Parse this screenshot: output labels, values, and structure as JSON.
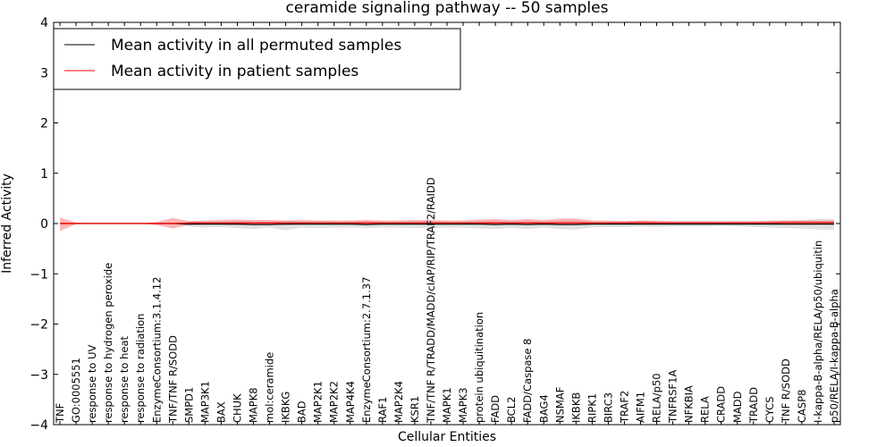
{
  "chart_data": {
    "type": "line",
    "title": "ceramide signaling pathway -- 50 samples",
    "xlabel": "Cellular Entities",
    "ylabel": "Inferred Activity",
    "ylim": [
      -4,
      4
    ],
    "yticks": [
      "4",
      "3",
      "2",
      "1",
      "0",
      "−1",
      "−2",
      "−3",
      "−4"
    ],
    "grid": false,
    "legend_position": "top-left",
    "categories": [
      "TNF",
      "GO:0005551",
      "response to UV",
      "response to hydrogen peroxide",
      "response to heat",
      "response to radiation",
      "EnzymeConsortium:3.1.4.12",
      "TNF/TNF R/SODD",
      "SMPD1",
      "MAP3K1",
      "BAX",
      "CHUK",
      "MAPK8",
      "mol:ceramide",
      "IKBKG",
      "BAD",
      "MAP2K1",
      "MAP2K2",
      "MAP4K4",
      "EnzymeConsortium:2.7.1.37",
      "RAF1",
      "MAP2K4",
      "KSR1",
      "TNF/TNF R/TRADD/MADD/cIAP/RIP/TRAF2/RAIDD",
      "MAPK1",
      "MAPK3",
      "protein ubiquitination",
      "FADD",
      "BCL2",
      "FADD/Caspase 8",
      "BAG4",
      "NSMAF",
      "IKBKB",
      "RIPK1",
      "BIRC3",
      "TRAF2",
      "AIFM1",
      "RELA/p50",
      "TNFRSF1A",
      "NFKBIA",
      "RELA",
      "CRADD",
      "MADD",
      "TRADD",
      "CYCS",
      "TNF R/SODD",
      "CASP8",
      "I-kappa-B-alpha/RELA/p50/ubiquitin",
      "p50/RELA/I-kappa-B-alpha"
    ],
    "series": [
      {
        "name": "Mean activity in all permuted samples",
        "color": "#000000",
        "values": [
          0,
          0,
          0,
          0,
          0,
          0,
          0,
          0,
          -0.01,
          -0.01,
          -0.01,
          -0.01,
          -0.02,
          -0.02,
          -0.01,
          -0.01,
          -0.01,
          -0.01,
          -0.01,
          -0.02,
          -0.01,
          -0.01,
          -0.01,
          -0.01,
          -0.01,
          -0.01,
          -0.01,
          -0.02,
          -0.01,
          -0.02,
          -0.01,
          -0.02,
          -0.02,
          -0.01,
          -0.01,
          -0.01,
          -0.01,
          -0.01,
          -0.01,
          -0.01,
          -0.01,
          -0.01,
          -0.01,
          -0.01,
          -0.01,
          -0.01,
          -0.01,
          -0.01,
          -0.01
        ],
        "lower": [
          0,
          0,
          0,
          0,
          0,
          0,
          0,
          0,
          -0.06,
          -0.08,
          -0.07,
          -0.09,
          -0.11,
          -0.08,
          -0.14,
          -0.08,
          -0.09,
          -0.08,
          -0.08,
          -0.09,
          -0.08,
          -0.08,
          -0.09,
          -0.09,
          -0.08,
          -0.08,
          -0.1,
          -0.11,
          -0.09,
          -0.11,
          -0.08,
          -0.11,
          -0.12,
          -0.08,
          -0.07,
          -0.07,
          -0.06,
          -0.07,
          -0.06,
          -0.06,
          -0.06,
          -0.05,
          -0.06,
          -0.07,
          -0.08,
          -0.09,
          -0.1,
          -0.12,
          -0.12
        ],
        "upper": [
          0,
          0,
          0,
          0,
          0,
          0,
          0,
          0,
          0.03,
          0.04,
          0.04,
          0.05,
          0.05,
          0.04,
          0.06,
          0.04,
          0.05,
          0.04,
          0.04,
          0.05,
          0.04,
          0.04,
          0.05,
          0.05,
          0.04,
          0.04,
          0.05,
          0.06,
          0.05,
          0.06,
          0.04,
          0.06,
          0.06,
          0.04,
          0.04,
          0.04,
          0.04,
          0.04,
          0.03,
          0.04,
          0.04,
          0.03,
          0.04,
          0.04,
          0.05,
          0.06,
          0.07,
          0.09,
          0.09
        ],
        "band_color": "#c8c8c8"
      },
      {
        "name": "Mean activity in patient samples",
        "color": "#ff0000",
        "values": [
          0,
          0,
          0,
          0,
          0,
          0,
          0,
          0,
          0.01,
          0.01,
          0.01,
          0.01,
          0.01,
          0.01,
          0.01,
          0.01,
          0.01,
          0.01,
          0.01,
          0.01,
          0.01,
          0.01,
          0.01,
          0.01,
          0.01,
          0.01,
          0.01,
          0.01,
          0.01,
          0.01,
          0.01,
          0.01,
          0.01,
          0.01,
          0.01,
          0.01,
          0.02,
          0.01,
          0.01,
          0.01,
          0.01,
          0.01,
          0.01,
          0.01,
          0.01,
          0.02,
          0.02,
          0.02,
          0.02
        ],
        "lower": [
          -0.15,
          -0.01,
          0,
          0,
          0,
          0,
          -0.03,
          -0.1,
          -0.03,
          -0.02,
          -0.02,
          -0.03,
          -0.03,
          -0.02,
          -0.03,
          -0.02,
          -0.02,
          -0.02,
          -0.02,
          -0.02,
          -0.02,
          -0.02,
          -0.02,
          -0.02,
          -0.02,
          -0.02,
          -0.02,
          -0.02,
          -0.02,
          -0.02,
          -0.02,
          -0.02,
          -0.02,
          -0.02,
          -0.02,
          -0.01,
          -0.01,
          -0.02,
          -0.01,
          -0.01,
          -0.01,
          -0.01,
          -0.01,
          -0.01,
          -0.01,
          -0.01,
          -0.01,
          -0.01,
          -0.01
        ],
        "upper": [
          0.12,
          0.02,
          0,
          0,
          0,
          0,
          0.03,
          0.11,
          0.05,
          0.06,
          0.07,
          0.08,
          0.07,
          0.07,
          0.06,
          0.07,
          0.06,
          0.06,
          0.06,
          0.07,
          0.06,
          0.06,
          0.07,
          0.07,
          0.06,
          0.06,
          0.08,
          0.09,
          0.07,
          0.09,
          0.07,
          0.1,
          0.1,
          0.06,
          0.06,
          0.05,
          0.06,
          0.06,
          0.05,
          0.05,
          0.05,
          0.05,
          0.05,
          0.05,
          0.06,
          0.06,
          0.06,
          0.06,
          0.06
        ],
        "band_color": "#ff6060"
      }
    ]
  }
}
